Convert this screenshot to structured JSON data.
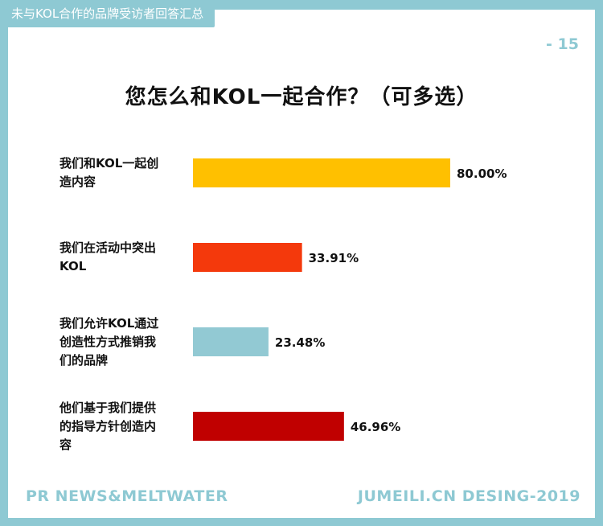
{
  "header": {
    "tag": "未与KOL合作的品牌受访者回答汇总",
    "page_number": "- 15"
  },
  "footer": {
    "left": "PR NEWS&MELTWATER",
    "right": "JUMEILI.CN DESING-2019"
  },
  "chart_data": {
    "type": "bar",
    "orientation": "horizontal",
    "title": "您怎么和KOL一起合作？（可多选）",
    "categories": [
      "我们和KOL一起创造内容",
      "我们在活动中突出KOL",
      "我们允许KOL通过创造性方式推销我们的品牌",
      "他们基于我们提供的指导方针创造内容"
    ],
    "values": [
      80.0,
      33.91,
      23.48,
      46.96
    ],
    "value_labels": [
      "80.00%",
      "33.91%",
      "23.48%",
      "46.96%"
    ],
    "colors": [
      "#ffc000",
      "#f4390c",
      "#92c9d3",
      "#c00000"
    ],
    "unit": "%",
    "grid": false,
    "legend": "none"
  },
  "colors": {
    "frame": "#8ec9d3",
    "text": "#111111"
  }
}
